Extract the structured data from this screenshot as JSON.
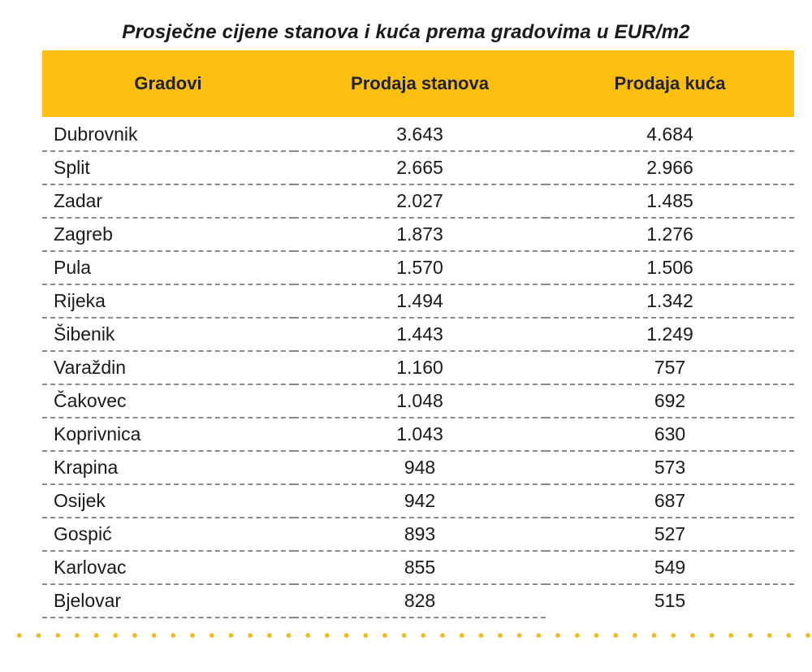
{
  "title": "Prosječne cijene stanova i kuća prema gradovima u EUR/m2",
  "colors": {
    "header_bg": "#fdbf0f",
    "dots": "#f3b81a"
  },
  "table": {
    "headers": [
      "Gradovi",
      "Prodaja stanova",
      "Prodaja kuća"
    ],
    "rows": [
      [
        "Dubrovnik",
        "3.643",
        "4.684"
      ],
      [
        "Split",
        "2.665",
        "2.966"
      ],
      [
        "Zadar",
        "2.027",
        "1.485"
      ],
      [
        "Zagreb",
        "1.873",
        "1.276"
      ],
      [
        "Pula",
        "1.570",
        "1.506"
      ],
      [
        "Rijeka",
        "1.494",
        "1.342"
      ],
      [
        "Šibenik",
        "1.443",
        "1.249"
      ],
      [
        "Varaždin",
        "1.160",
        "757"
      ],
      [
        "Čakovec",
        "1.048",
        "692"
      ],
      [
        "Koprivnica",
        "1.043",
        "630"
      ],
      [
        "Krapina",
        "948",
        "573"
      ],
      [
        "Osijek",
        "942",
        "687"
      ],
      [
        "Gospić",
        "893",
        "527"
      ],
      [
        "Karlovac",
        "855",
        "549"
      ],
      [
        "Bjelovar",
        "828",
        "515"
      ]
    ]
  }
}
